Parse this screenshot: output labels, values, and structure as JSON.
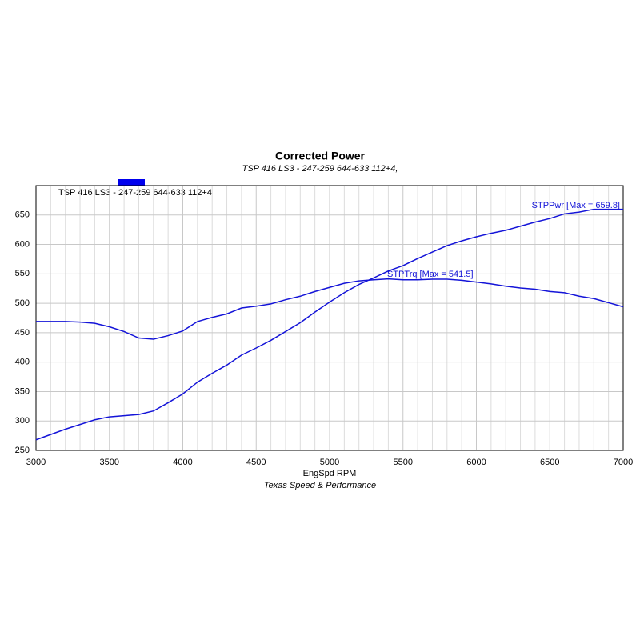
{
  "chart_data": {
    "type": "line",
    "title": "Corrected Power",
    "subtitle": "TSP 416 LS3 - 247-259 644-633 112+4,",
    "xlabel": "EngSpd RPM",
    "footer": "Texas Speed & Performance",
    "legend": {
      "label": "TSP 416 LS3 - 247-259 644-633 112+4",
      "color": "#0000ee"
    },
    "x": [
      3000,
      3100,
      3200,
      3300,
      3400,
      3500,
      3600,
      3700,
      3800,
      3900,
      4000,
      4100,
      4200,
      4300,
      4400,
      4500,
      4600,
      4700,
      4800,
      4900,
      5000,
      5100,
      5200,
      5300,
      5400,
      5500,
      5600,
      5700,
      5800,
      5900,
      6000,
      6100,
      6200,
      6300,
      6400,
      6500,
      6600,
      6700,
      6800,
      6900,
      7000
    ],
    "series": [
      {
        "color": "#1414d8",
        "values": [
          268,
          277,
          286,
          294,
          302,
          307,
          309,
          311,
          317,
          331,
          346,
          366,
          381,
          395,
          412,
          424,
          437,
          452,
          467,
          485,
          502,
          518,
          532,
          543,
          555,
          564,
          576,
          587,
          598,
          606,
          613,
          619,
          624,
          631,
          638,
          644,
          652,
          655,
          659.8,
          659.8,
          659.8
        ]
      },
      {
        "color": "#1414d8",
        "values": [
          469,
          469,
          469,
          468,
          466,
          460,
          452,
          441,
          439,
          445,
          453,
          469,
          476,
          482,
          492,
          495,
          499,
          506,
          512,
          520,
          527,
          534,
          538,
          540,
          541.5,
          540,
          540,
          541,
          541,
          539,
          536,
          533,
          529,
          526,
          524,
          520,
          518,
          512,
          508,
          501,
          494
        ]
      }
    ],
    "annotations": [
      "STPPwr [Max = 659.8]",
      "STPTrq [Max = 541.5]"
    ],
    "xlim": [
      3000,
      7000
    ],
    "xticks": [
      3000,
      3500,
      4000,
      4500,
      5000,
      5500,
      6000,
      6500,
      7000
    ],
    "x_minor_ticks": [
      3100,
      3200,
      3300,
      3400,
      3600,
      3700,
      3800,
      3900,
      4100,
      4200,
      4300,
      4400,
      4600,
      4700,
      4800,
      4900,
      5100,
      5200,
      5300,
      5400,
      5600,
      5700,
      5800,
      5900,
      6100,
      6200,
      6300,
      6400,
      6600,
      6700,
      6800,
      6900
    ],
    "ylim": [
      250,
      700
    ],
    "yticks": [
      250,
      300,
      350,
      400,
      450,
      500,
      550,
      600,
      650
    ],
    "grid": true
  }
}
